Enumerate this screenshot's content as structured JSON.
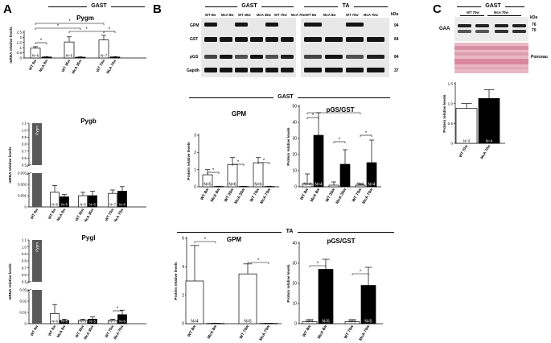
{
  "panel_labels": {
    "a": "A",
    "b": "B",
    "c": "C"
  },
  "sections": {
    "a_top": "GAST",
    "b_top_left": "GAST",
    "b_top_right": "TA",
    "b_mid": "GAST",
    "b_bot": "TA",
    "c_top": "GAST"
  },
  "blot_b": {
    "rows": [
      {
        "label": "GPM",
        "kda": "94"
      },
      {
        "label": "GST",
        "kda": "84"
      },
      {
        "label": "pGS",
        "kda": "84"
      },
      {
        "label": "Gapdh",
        "kda": "37"
      }
    ],
    "kda_unit": "kDa",
    "lanes_gast": [
      "WT 8w",
      "McA 8w",
      "WT 35w",
      "McA 35w",
      "WT 70w",
      "McA 70w"
    ],
    "lanes_ta": [
      "WT 8w",
      "McA 8w",
      "WT 70w",
      "McA 70w"
    ]
  },
  "blot_c": {
    "lanes": [
      "WT 70w",
      "McA 70w"
    ],
    "label_gaa": "GAA",
    "label_ponceau": "Ponceau",
    "kda_unit": "kDa",
    "kda_values": [
      "76",
      "70"
    ]
  },
  "chart_data": [
    {
      "type": "bar",
      "title": "Pygm",
      "ylabel": "mRNA relative levels",
      "ylim": [
        0,
        2.5
      ],
      "yticks": [
        "0",
        "0.5",
        "1",
        "1.5",
        "2",
        "2.5"
      ],
      "categories": [
        "WT 8w",
        "McA 8w",
        "WT 35w",
        "McA 35w",
        "WT 70w",
        "McA 70w"
      ],
      "values": [
        0.95,
        0.1,
        1.55,
        0.08,
        1.75,
        0.1
      ],
      "errors": [
        0.15,
        0.03,
        0.5,
        0.03,
        0.45,
        0.03
      ],
      "n_labels": [
        "N=6",
        "N=5",
        "N=5",
        "N=5",
        "N=7",
        "N=6"
      ],
      "significance": [
        "*",
        "*",
        "*",
        "*",
        "*"
      ]
    },
    {
      "type": "bar",
      "title": "Pygb",
      "ylabel": "mRNA relative levels",
      "ylim": [
        0,
        0.003
      ],
      "reference_bar": "Pygm",
      "yticks": [
        "0",
        "0.001",
        "0.002",
        "0.003",
        "0.5",
        "0.6",
        "0.7",
        "0.8",
        "0.9",
        "1.0",
        "1.1"
      ],
      "categories": [
        "WT 8w",
        "McA 8w",
        "WT 35w",
        "McA 35w",
        "WT 70w",
        "McA 70w"
      ],
      "values": [
        0.0013,
        0.0009,
        0.001,
        0.001,
        0.0012,
        0.0014
      ],
      "errors": [
        0.0006,
        0.0002,
        0.0003,
        0.0004,
        0.0003,
        0.0004
      ],
      "n_labels": [
        "N=6",
        "N=5",
        "N=5",
        "N=5",
        "N=7",
        "N=6"
      ]
    },
    {
      "type": "bar",
      "title": "Pygl",
      "ylabel": "mRNA relative levels",
      "ylim": [
        0,
        0.03
      ],
      "reference_bar": "Pygm",
      "yticks": [
        "0",
        "0.01",
        "0.02",
        "0.03",
        "0.5",
        "0.6",
        "0.7",
        "0.8",
        "0.9",
        "1.0",
        "1.1"
      ],
      "categories": [
        "WT 8w",
        "McA 8w",
        "WT 35w",
        "McA 35w",
        "WT 70w",
        "McA 70w"
      ],
      "values": [
        0.009,
        0.003,
        0.003,
        0.004,
        0.003,
        0.008
      ],
      "errors": [
        0.008,
        0.001,
        0.001,
        0.002,
        0.001,
        0.004
      ],
      "n_labels": [
        "N=6",
        "N=5",
        "N=5",
        "N=5",
        "N=7",
        "N=6"
      ],
      "significance": [
        "*"
      ]
    },
    {
      "type": "bar",
      "title": "GPM",
      "ylabel": "Protein relative levels",
      "ylim": [
        0,
        3
      ],
      "yticks": [
        "0",
        "1",
        "2",
        "3"
      ],
      "categories": [
        "WT 8w",
        "McA 8w",
        "WT 35w",
        "McA 35w",
        "WT 70w",
        "McA 70w"
      ],
      "values": [
        0.7,
        0.02,
        1.3,
        0.02,
        1.4,
        0.02
      ],
      "errors": [
        0.3,
        0.01,
        0.4,
        0.01,
        0.3,
        0.01
      ],
      "n_labels": [
        "N=5",
        "N=5",
        "N=6",
        "N=5",
        "N=6",
        "N=5"
      ],
      "significance": [
        "*",
        "*",
        "*"
      ]
    },
    {
      "type": "bar",
      "title": "pGS/GST",
      "ylabel": "Protein relative levels",
      "ylim": [
        0,
        50
      ],
      "yticks": [
        "0",
        "10",
        "20",
        "30",
        "40",
        "50"
      ],
      "categories": [
        "WT 8w",
        "McA 8w",
        "WT 35w",
        "McA 35w",
        "WT 70w",
        "McA 70w"
      ],
      "values": [
        2,
        32,
        1,
        14,
        1,
        15
      ],
      "errors": [
        6,
        14,
        2,
        9,
        1,
        14
      ],
      "n_labels": [
        "N=4",
        "N=4",
        "",
        "",
        "N=4",
        "N=4"
      ],
      "significance": [
        "*",
        "*",
        "*",
        "*"
      ]
    },
    {
      "type": "bar",
      "title": "GPM",
      "ylabel": "Protein relative levels",
      "ylim": [
        0,
        6
      ],
      "yticks": [
        "0",
        "2",
        "4",
        "6"
      ],
      "categories": [
        "WT 8w",
        "McA 8w",
        "WT 70w",
        "McA 70w"
      ],
      "values": [
        3.0,
        0.02,
        3.5,
        0.02
      ],
      "errors": [
        2.5,
        0.01,
        0.7,
        0.01
      ],
      "n_labels": [
        "N=4",
        "N=5",
        "N=5",
        "N=5"
      ],
      "significance": [
        "*",
        "*"
      ]
    },
    {
      "type": "bar",
      "title": "pGS/GST",
      "ylabel": "Protein relative levels",
      "ylim": [
        0,
        40
      ],
      "yticks": [
        "0",
        "10",
        "20",
        "30",
        "40"
      ],
      "categories": [
        "WT 8w",
        "McA 8w",
        "WT 70w",
        "McA 70w"
      ],
      "values": [
        1,
        27,
        1,
        19
      ],
      "errors": [
        1,
        5,
        1,
        9
      ],
      "n_labels": [
        "N=4",
        "N=5",
        "N=5",
        "N=5"
      ],
      "significance": [
        "*",
        "*"
      ]
    },
    {
      "type": "bar",
      "title": "",
      "ylabel": "Protein relative levels",
      "ylim": [
        0,
        1.5
      ],
      "yticks": [
        "0",
        "0.5",
        "1.0",
        "1.5"
      ],
      "categories": [
        "WT 70w",
        "McA 70w"
      ],
      "values": [
        0.88,
        1.13
      ],
      "errors": [
        0.12,
        0.22
      ],
      "n_labels": [
        "N=3",
        "N=4"
      ]
    }
  ]
}
